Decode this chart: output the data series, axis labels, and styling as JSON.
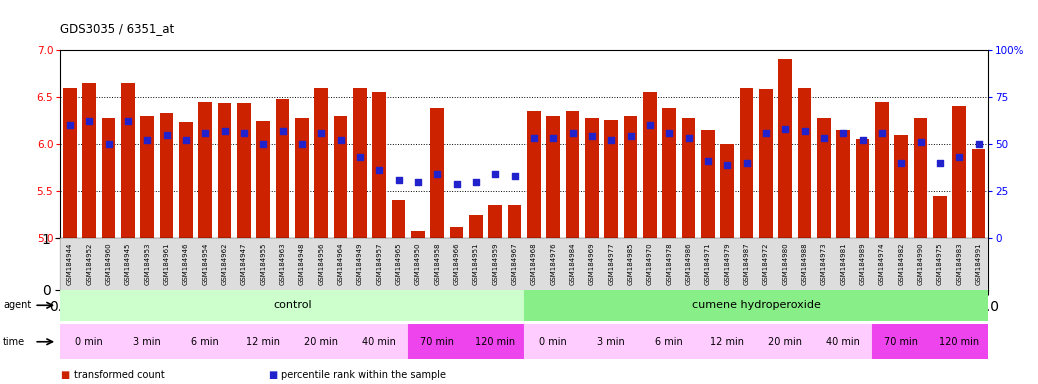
{
  "title": "GDS3035 / 6351_at",
  "samples": [
    "GSM184944",
    "GSM184952",
    "GSM184960",
    "GSM184945",
    "GSM184953",
    "GSM184961",
    "GSM184946",
    "GSM184954",
    "GSM184962",
    "GSM184947",
    "GSM184955",
    "GSM184963",
    "GSM184948",
    "GSM184956",
    "GSM184964",
    "GSM184949",
    "GSM184957",
    "GSM184965",
    "GSM184950",
    "GSM184958",
    "GSM184966",
    "GSM184951",
    "GSM184959",
    "GSM184967",
    "GSM184968",
    "GSM184976",
    "GSM184984",
    "GSM184969",
    "GSM184977",
    "GSM184985",
    "GSM184970",
    "GSM184978",
    "GSM184986",
    "GSM184971",
    "GSM184979",
    "GSM184987",
    "GSM184972",
    "GSM184980",
    "GSM184988",
    "GSM184973",
    "GSM184981",
    "GSM184989",
    "GSM184974",
    "GSM184982",
    "GSM184990",
    "GSM184975",
    "GSM184983",
    "GSM184991"
  ],
  "bar_values": [
    6.6,
    6.65,
    6.28,
    6.65,
    6.3,
    6.33,
    6.23,
    6.45,
    6.44,
    6.44,
    6.24,
    6.48,
    6.28,
    6.6,
    6.3,
    6.6,
    6.55,
    5.4,
    5.08,
    6.38,
    5.12,
    5.25,
    5.35,
    5.35,
    6.35,
    6.3,
    6.35,
    6.28,
    6.25,
    6.3,
    6.55,
    6.38,
    6.28,
    6.15,
    6.0,
    6.6,
    6.58,
    6.9,
    6.6,
    6.28,
    6.15,
    6.05,
    6.45,
    6.1,
    6.28,
    5.45,
    6.4,
    5.95
  ],
  "percentile_pcts": [
    60,
    62,
    50,
    62,
    52,
    55,
    52,
    56,
    57,
    56,
    50,
    57,
    50,
    56,
    52,
    43,
    36,
    31,
    30,
    34,
    29,
    30,
    34,
    33,
    53,
    53,
    56,
    54,
    52,
    54,
    60,
    56,
    53,
    41,
    39,
    40,
    56,
    58,
    57,
    53,
    56,
    52,
    56,
    40,
    51,
    40,
    43,
    50
  ],
  "ylim_left": [
    5.0,
    7.0
  ],
  "ylim_right": [
    0,
    100
  ],
  "yticks_left": [
    5.0,
    5.5,
    6.0,
    6.5,
    7.0
  ],
  "yticks_right": [
    0,
    25,
    50,
    75,
    100
  ],
  "ytick_right_labels": [
    "0",
    "25",
    "50",
    "75",
    "100%"
  ],
  "bar_color": "#cc2200",
  "dot_color": "#2222cc",
  "bg_color": "#ffffff",
  "agent_groups": [
    {
      "label": "control",
      "start": 0,
      "end": 24,
      "color": "#ccffcc"
    },
    {
      "label": "cumene hydroperoxide",
      "start": 24,
      "end": 48,
      "color": "#88ee88"
    }
  ],
  "time_groups": [
    {
      "label": "0 min",
      "start": 0,
      "end": 3,
      "color": "#ffccff"
    },
    {
      "label": "3 min",
      "start": 3,
      "end": 6,
      "color": "#ffccff"
    },
    {
      "label": "6 min",
      "start": 6,
      "end": 9,
      "color": "#ffccff"
    },
    {
      "label": "12 min",
      "start": 9,
      "end": 12,
      "color": "#ffccff"
    },
    {
      "label": "20 min",
      "start": 12,
      "end": 15,
      "color": "#ffccff"
    },
    {
      "label": "40 min",
      "start": 15,
      "end": 18,
      "color": "#ffccff"
    },
    {
      "label": "70 min",
      "start": 18,
      "end": 21,
      "color": "#ee44ee"
    },
    {
      "label": "120 min",
      "start": 21,
      "end": 24,
      "color": "#ee44ee"
    },
    {
      "label": "0 min",
      "start": 24,
      "end": 27,
      "color": "#ffccff"
    },
    {
      "label": "3 min",
      "start": 27,
      "end": 30,
      "color": "#ffccff"
    },
    {
      "label": "6 min",
      "start": 30,
      "end": 33,
      "color": "#ffccff"
    },
    {
      "label": "12 min",
      "start": 33,
      "end": 36,
      "color": "#ffccff"
    },
    {
      "label": "20 min",
      "start": 36,
      "end": 39,
      "color": "#ffccff"
    },
    {
      "label": "40 min",
      "start": 39,
      "end": 42,
      "color": "#ffccff"
    },
    {
      "label": "70 min",
      "start": 42,
      "end": 45,
      "color": "#ee44ee"
    },
    {
      "label": "120 min",
      "start": 45,
      "end": 48,
      "color": "#ee44ee"
    }
  ],
  "legend_items": [
    {
      "label": "transformed count",
      "color": "#cc2200"
    },
    {
      "label": "percentile rank within the sample",
      "color": "#2222cc"
    }
  ]
}
